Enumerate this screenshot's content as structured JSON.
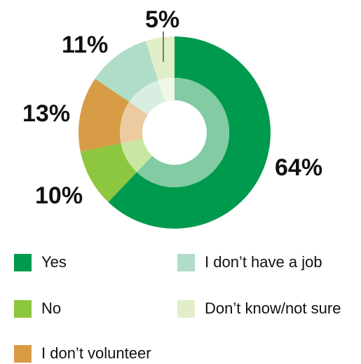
{
  "chart_data": {
    "type": "pie",
    "categories": [
      "Yes",
      "No",
      "I don’t volunteer",
      "I don’t have a job",
      "Don’t know/not sure"
    ],
    "values": [
      64,
      10,
      13,
      11,
      5
    ],
    "value_labels": [
      "64%",
      "10%",
      "13%",
      "11%",
      "5%"
    ],
    "unit": "%",
    "colors": [
      "#009a4e",
      "#8dc63f",
      "#d89b45",
      "#b0ddc7",
      "#e1efc9"
    ],
    "inner_ring_colors": [
      "#82cba3",
      "#c9e7a3",
      "#ebcb9f",
      "#d8eee3",
      "#f0f7e4"
    ],
    "legend_position": "bottom"
  }
}
